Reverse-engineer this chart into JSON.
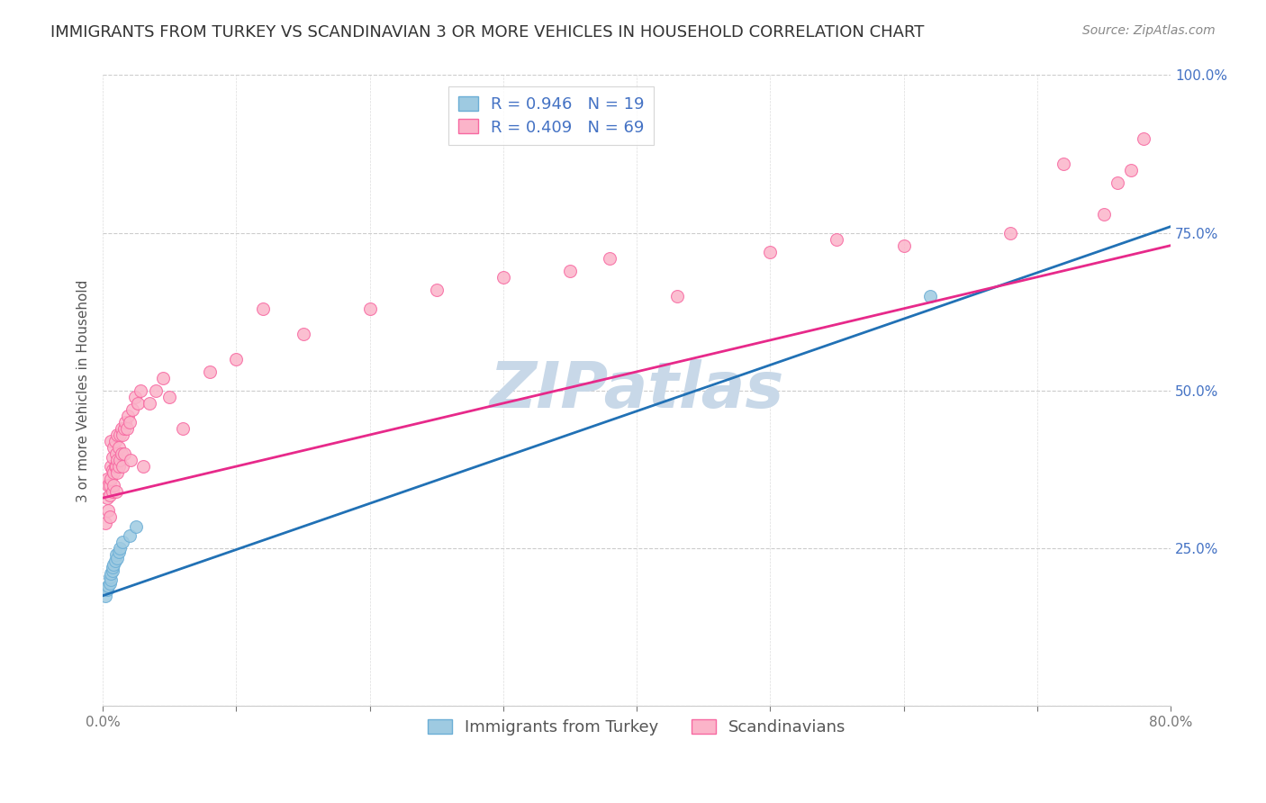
{
  "title": "IMMIGRANTS FROM TURKEY VS SCANDINAVIAN 3 OR MORE VEHICLES IN HOUSEHOLD CORRELATION CHART",
  "source": "Source: ZipAtlas.com",
  "ylabel": "3 or more Vehicles in Household",
  "xmin": 0.0,
  "xmax": 0.8,
  "ymin": 0.0,
  "ymax": 1.0,
  "yticks": [
    0.0,
    0.25,
    0.5,
    0.75,
    1.0
  ],
  "ytick_labels": [
    "",
    "25.0%",
    "50.0%",
    "75.0%",
    "100.0%"
  ],
  "background_color": "#ffffff",
  "watermark": "ZIPatlas",
  "watermark_color": "#c8d8e8",
  "legend_r_entries": [
    {
      "label": "R = 0.946   N = 19",
      "facecolor": "#9ecae1",
      "edgecolor": "#6baed6"
    },
    {
      "label": "R = 0.409   N = 69",
      "facecolor": "#fbb4c9",
      "edgecolor": "#f768a1"
    }
  ],
  "legend_bottom_entries": [
    {
      "label": "Immigrants from Turkey",
      "facecolor": "#9ecae1",
      "edgecolor": "#6baed6"
    },
    {
      "label": "Scandinavians",
      "facecolor": "#fbb4c9",
      "edgecolor": "#f768a1"
    }
  ],
  "series_turkey": {
    "color": "#9ecae1",
    "edge_color": "#6baed6",
    "x": [
      0.002,
      0.003,
      0.004,
      0.005,
      0.005,
      0.006,
      0.006,
      0.007,
      0.007,
      0.008,
      0.009,
      0.01,
      0.011,
      0.012,
      0.013,
      0.015,
      0.02,
      0.025,
      0.62
    ],
    "y": [
      0.175,
      0.185,
      0.19,
      0.195,
      0.205,
      0.2,
      0.21,
      0.215,
      0.22,
      0.225,
      0.23,
      0.24,
      0.235,
      0.245,
      0.25,
      0.26,
      0.27,
      0.285,
      0.65
    ]
  },
  "series_scand": {
    "color": "#fbb4c9",
    "edge_color": "#f768a1",
    "x": [
      0.002,
      0.003,
      0.003,
      0.004,
      0.004,
      0.005,
      0.005,
      0.005,
      0.006,
      0.006,
      0.006,
      0.007,
      0.007,
      0.007,
      0.008,
      0.008,
      0.008,
      0.009,
      0.009,
      0.01,
      0.01,
      0.01,
      0.011,
      0.011,
      0.011,
      0.012,
      0.012,
      0.013,
      0.013,
      0.014,
      0.014,
      0.015,
      0.015,
      0.016,
      0.016,
      0.017,
      0.018,
      0.019,
      0.02,
      0.021,
      0.022,
      0.024,
      0.026,
      0.028,
      0.03,
      0.035,
      0.04,
      0.045,
      0.05,
      0.06,
      0.08,
      0.1,
      0.12,
      0.15,
      0.2,
      0.25,
      0.3,
      0.35,
      0.38,
      0.43,
      0.5,
      0.55,
      0.6,
      0.68,
      0.72,
      0.75,
      0.76,
      0.77,
      0.78
    ],
    "y": [
      0.29,
      0.33,
      0.36,
      0.31,
      0.35,
      0.3,
      0.335,
      0.35,
      0.36,
      0.38,
      0.42,
      0.34,
      0.375,
      0.395,
      0.35,
      0.37,
      0.41,
      0.38,
      0.42,
      0.34,
      0.38,
      0.4,
      0.37,
      0.39,
      0.43,
      0.38,
      0.41,
      0.39,
      0.43,
      0.4,
      0.44,
      0.38,
      0.43,
      0.4,
      0.44,
      0.45,
      0.44,
      0.46,
      0.45,
      0.39,
      0.47,
      0.49,
      0.48,
      0.5,
      0.38,
      0.48,
      0.5,
      0.52,
      0.49,
      0.44,
      0.53,
      0.55,
      0.63,
      0.59,
      0.63,
      0.66,
      0.68,
      0.69,
      0.71,
      0.65,
      0.72,
      0.74,
      0.73,
      0.75,
      0.86,
      0.78,
      0.83,
      0.85,
      0.9
    ]
  },
  "trend_turkey": {
    "color": "#2171b5",
    "x_start": 0.0,
    "x_end": 0.8,
    "y_start": 0.175,
    "y_end": 0.76
  },
  "trend_scand": {
    "color": "#e7298a",
    "x_start": 0.0,
    "x_end": 0.8,
    "y_start": 0.33,
    "y_end": 0.73
  },
  "title_fontsize": 13,
  "axis_label_fontsize": 11,
  "tick_fontsize": 11,
  "legend_fontsize": 13,
  "source_fontsize": 10,
  "marker_size": 100,
  "line_width": 2.0
}
